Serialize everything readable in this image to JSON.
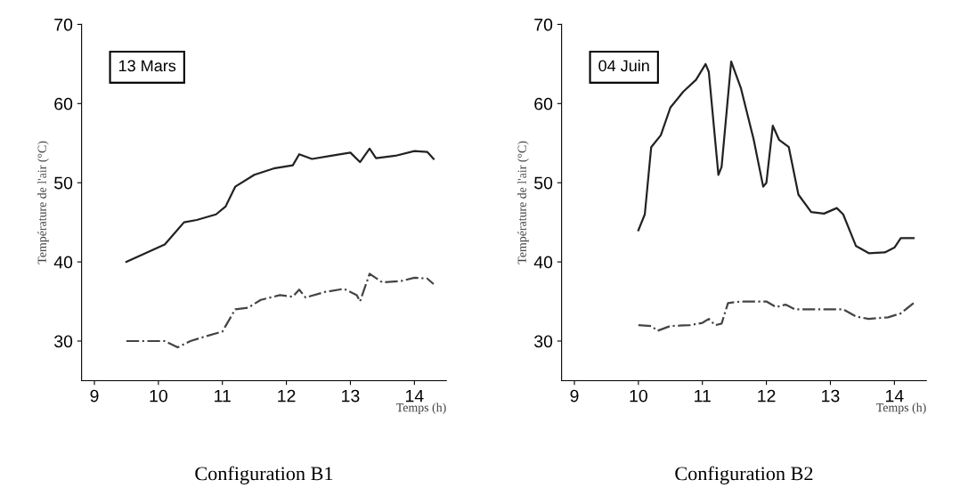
{
  "chart_data": [
    {
      "type": "line",
      "title": "Configuration B1",
      "xlabel": "Temps (h)",
      "ylabel": "Température de l'air (°C)",
      "annotations": [
        "13 Mars"
      ],
      "xlim": [
        8.8,
        14.5
      ],
      "ylim": [
        25,
        70
      ],
      "xticks": [
        9,
        10,
        11,
        12,
        13,
        14
      ],
      "yticks": [
        30,
        40,
        50,
        60,
        70
      ],
      "grid": false,
      "legend": false,
      "series": [
        {
          "color": "#222222",
          "line_style": "solid",
          "x": [
            9.5,
            10.1,
            10.4,
            10.6,
            10.9,
            11.05,
            11.2,
            11.5,
            11.8,
            12.1,
            12.2,
            12.4,
            12.7,
            13.0,
            13.15,
            13.3,
            13.4,
            13.7,
            14.0,
            14.2,
            14.3
          ],
          "values": [
            40,
            42.2,
            45,
            45.3,
            46,
            47,
            49.5,
            51,
            51.8,
            52.2,
            53.6,
            53,
            53.4,
            53.8,
            52.6,
            54.3,
            53.1,
            53.4,
            54,
            53.9,
            53
          ]
        },
        {
          "color": "#444444",
          "line_style": "dashdot",
          "x": [
            9.5,
            10.1,
            10.3,
            10.5,
            10.7,
            11.0,
            11.2,
            11.4,
            11.6,
            11.9,
            12.1,
            12.2,
            12.3,
            12.6,
            12.9,
            13.1,
            13.15,
            13.3,
            13.5,
            13.8,
            14.0,
            14.2,
            14.3
          ],
          "values": [
            30,
            30,
            29.2,
            30,
            30.5,
            31.2,
            34,
            34.2,
            35.2,
            35.8,
            35.6,
            36.5,
            35.5,
            36.2,
            36.6,
            35.8,
            35,
            38.5,
            37.4,
            37.6,
            38,
            37.9,
            37.2
          ]
        }
      ]
    },
    {
      "type": "line",
      "title": "Configuration B2",
      "xlabel": "Temps (h)",
      "ylabel": "Température de l'air (°C)",
      "annotations": [
        "04 Juin"
      ],
      "xlim": [
        8.8,
        14.5
      ],
      "ylim": [
        25,
        70
      ],
      "xticks": [
        9,
        10,
        11,
        12,
        13,
        14
      ],
      "yticks": [
        30,
        40,
        50,
        60,
        70
      ],
      "grid": false,
      "legend": false,
      "series": [
        {
          "color": "#222222",
          "line_style": "solid",
          "x": [
            10.0,
            10.1,
            10.2,
            10.35,
            10.5,
            10.7,
            10.9,
            11.05,
            11.1,
            11.25,
            11.3,
            11.45,
            11.6,
            11.8,
            11.95,
            12.0,
            12.1,
            12.2,
            12.35,
            12.5,
            12.7,
            12.9,
            13.1,
            13.2,
            13.4,
            13.6,
            13.85,
            14.0,
            14.1,
            14.3
          ],
          "values": [
            44,
            46,
            54.5,
            56,
            59.5,
            61.5,
            63,
            65,
            64,
            51,
            52,
            65.3,
            62,
            55.5,
            49.5,
            50,
            57.2,
            55.4,
            54.5,
            48.5,
            46.3,
            46.1,
            46.8,
            46,
            42,
            41.1,
            41.2,
            41.8,
            43,
            43
          ]
        },
        {
          "color": "#444444",
          "line_style": "dashdot",
          "x": [
            10.0,
            10.2,
            10.3,
            10.5,
            10.8,
            11.0,
            11.1,
            11.2,
            11.3,
            11.4,
            11.6,
            12.0,
            12.15,
            12.3,
            12.45,
            12.8,
            13.2,
            13.4,
            13.6,
            13.9,
            14.1,
            14.3
          ],
          "values": [
            32,
            31.9,
            31.3,
            31.9,
            32,
            32.3,
            32.8,
            32,
            32.2,
            34.8,
            35,
            35,
            34.3,
            34.6,
            34,
            34,
            34,
            33.1,
            32.8,
            33,
            33.5,
            34.8
          ]
        }
      ]
    }
  ]
}
